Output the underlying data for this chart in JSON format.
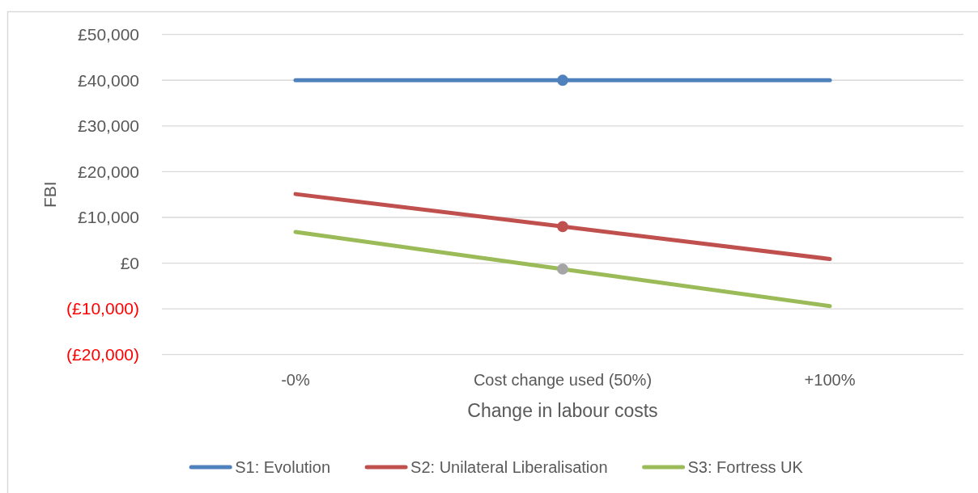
{
  "chart_data": {
    "type": "line",
    "xlabel": "Change in labour costs",
    "ylabel": "FBI",
    "categories": [
      "-0%",
      "Cost change used (50%)",
      "+100%"
    ],
    "series": [
      {
        "name": "S1: Evolution",
        "color": "#4f81bd",
        "values": [
          40000,
          40000,
          40000
        ]
      },
      {
        "name": "S2: Unilateral Liberalisation",
        "color": "#c0504d",
        "values": [
          15100,
          8000,
          900
        ]
      },
      {
        "name": "S3: Fortress UK",
        "color": "#9bbb59",
        "values": [
          6800,
          -1300,
          -9400
        ]
      },
      {
        "type": "scatter",
        "marker": "circle",
        "color": "#4f81bd",
        "values": [
          null,
          40000,
          null
        ]
      },
      {
        "type": "scatter",
        "marker": "circle",
        "color": "#c0504d",
        "values": [
          null,
          8000,
          null
        ]
      },
      {
        "type": "scatter",
        "marker": "circle",
        "color": "#a5a5a5",
        "values": [
          null,
          -1300,
          null
        ]
      }
    ],
    "ylim": [
      -20000,
      50000
    ],
    "yticks": [
      {
        "value": -20000,
        "label": "(£20,000)"
      },
      {
        "value": -10000,
        "label": "(£10,000)"
      },
      {
        "value": 0,
        "label": "£0"
      },
      {
        "value": 10000,
        "label": "£10,000"
      },
      {
        "value": 20000,
        "label": "£20,000"
      },
      {
        "value": 30000,
        "label": "£30,000"
      },
      {
        "value": 40000,
        "label": "£40,000"
      },
      {
        "value": 50000,
        "label": "£50,000"
      }
    ],
    "grid": "y",
    "legend": "bottom"
  }
}
